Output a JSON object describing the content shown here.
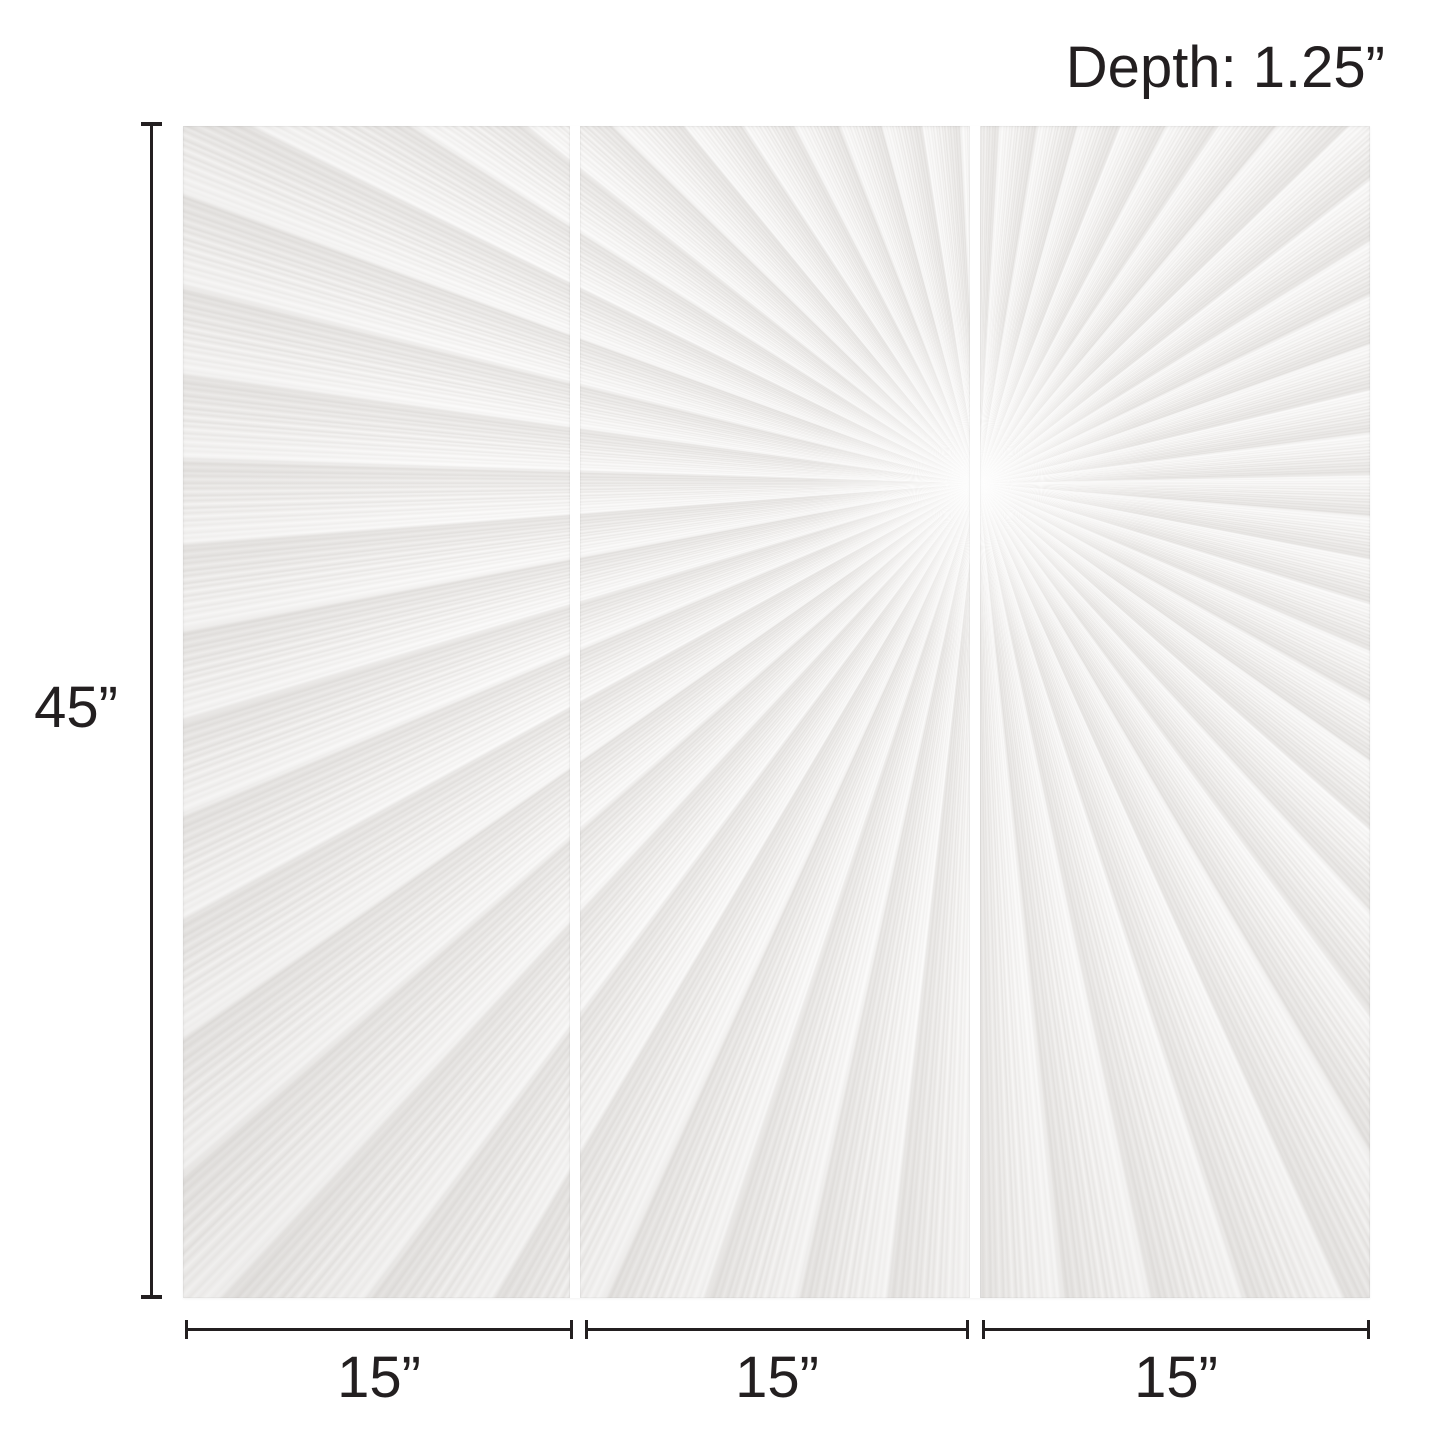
{
  "colors": {
    "ink": "#231f20",
    "page": "#ffffff",
    "panel_base": "#f0efee",
    "panel_highlight": "#f9f8f7",
    "panel_shadow": "#e7e5e3"
  },
  "annotations": {
    "depth": "Depth: 1.25”",
    "height": "45”"
  },
  "panels": [
    {
      "name": "left-panel",
      "width_label": "15”"
    },
    {
      "name": "center-panel",
      "width_label": "15”"
    },
    {
      "name": "right-panel",
      "width_label": "15”"
    }
  ],
  "artwork": {
    "panel_count": 3,
    "texture": "sunburst-plaster-relief"
  }
}
